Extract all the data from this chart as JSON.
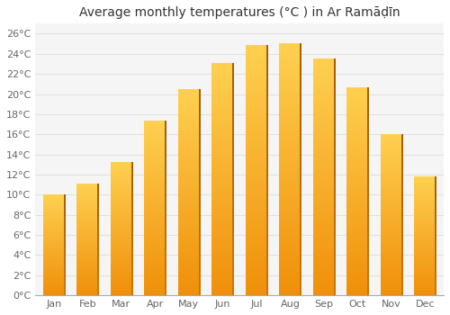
{
  "title": "Average monthly temperatures (°C ) in Ar Ramāḍīn",
  "months": [
    "Jan",
    "Feb",
    "Mar",
    "Apr",
    "May",
    "Jun",
    "Jul",
    "Aug",
    "Sep",
    "Oct",
    "Nov",
    "Dec"
  ],
  "values": [
    10.0,
    11.0,
    13.2,
    17.3,
    20.4,
    23.0,
    24.8,
    25.0,
    23.5,
    20.6,
    16.0,
    11.8
  ],
  "bar_color_bottom": "#F0900A",
  "bar_color_mid": "#FBBA25",
  "bar_color_top": "#FFCF50",
  "bar_shadow_color": "#D07808",
  "plot_bg_color": "#f5f5f5",
  "fig_bg_color": "#ffffff",
  "grid_color": "#e0e0e0",
  "title_color": "#333333",
  "tick_color": "#666666",
  "ylim": [
    0,
    27
  ],
  "yticks": [
    0,
    2,
    4,
    6,
    8,
    10,
    12,
    14,
    16,
    18,
    20,
    22,
    24,
    26
  ],
  "ytick_labels": [
    "0°C",
    "2°C",
    "4°C",
    "6°C",
    "8°C",
    "10°C",
    "12°C",
    "14°C",
    "16°C",
    "18°C",
    "20°C",
    "22°C",
    "24°C",
    "26°C"
  ],
  "title_fontsize": 10,
  "tick_fontsize": 8,
  "bar_width": 0.65
}
